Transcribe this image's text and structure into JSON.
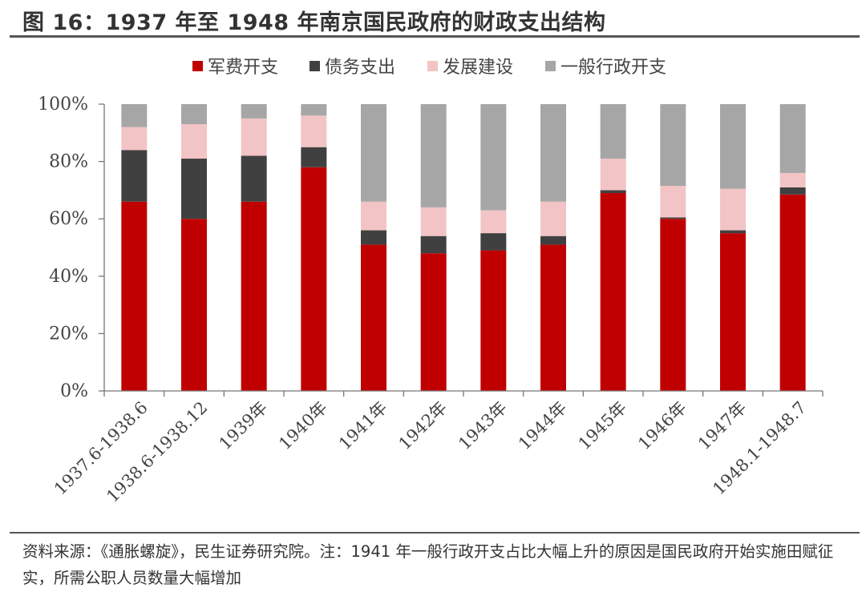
{
  "figure": {
    "title": "图 16：1937 年至 1948 年南京国民政府的财政支出结构",
    "source_note": "资料来源：《通胀螺旋》，民生证券研究院。注：1941 年一般行政开支占比大幅上升的原因是国民政府开始实施田赋征实，所需公职人员数量大幅增加"
  },
  "chart_data": {
    "type": "bar",
    "stacked": true,
    "categories": [
      "1937.6-1938.6",
      "1938.6-1938.12",
      "1939年",
      "1940年",
      "1941年",
      "1942年",
      "1943年",
      "1944年",
      "1945年",
      "1946年",
      "1947年",
      "1948.1-1948.7"
    ],
    "series": [
      {
        "name": "军费开支",
        "color": "#c00000",
        "values": [
          66,
          60,
          66,
          78,
          51,
          48,
          49,
          51,
          69,
          60,
          55,
          68.5
        ]
      },
      {
        "name": "债务支出",
        "color": "#404040",
        "values": [
          18,
          21,
          16,
          7,
          5,
          6,
          6,
          3,
          1,
          0.5,
          1,
          2.5
        ]
      },
      {
        "name": "发展建设",
        "color": "#f2c4c6",
        "values": [
          8,
          12,
          13,
          11,
          10,
          10,
          8,
          12,
          11,
          11,
          14.5,
          5
        ]
      },
      {
        "name": "一般行政开支",
        "color": "#a6a6a6",
        "values": [
          8,
          7,
          5,
          4,
          34,
          36,
          37,
          34,
          19,
          28.5,
          29.5,
          24
        ]
      }
    ],
    "y_ticks": [
      "0%",
      "20%",
      "40%",
      "60%",
      "80%",
      "100%"
    ],
    "ylim": [
      0,
      100
    ],
    "grid": false,
    "legend_position": "top"
  }
}
